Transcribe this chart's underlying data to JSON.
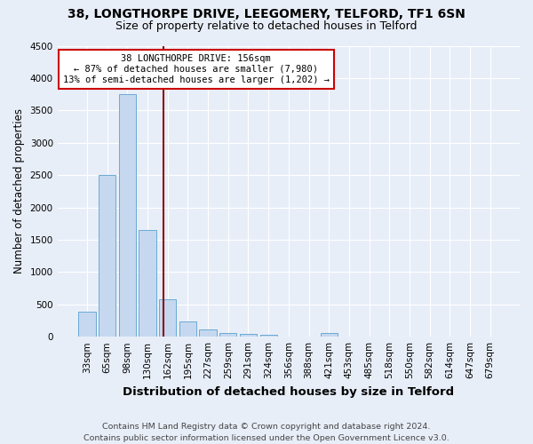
{
  "title1": "38, LONGTHORPE DRIVE, LEEGOMERY, TELFORD, TF1 6SN",
  "title2": "Size of property relative to detached houses in Telford",
  "xlabel": "Distribution of detached houses by size in Telford",
  "ylabel": "Number of detached properties",
  "footer": "Contains HM Land Registry data © Crown copyright and database right 2024.\nContains public sector information licensed under the Open Government Licence v3.0.",
  "annotation_title": "38 LONGTHORPE DRIVE: 156sqm",
  "annotation_line1": "← 87% of detached houses are smaller (7,980)",
  "annotation_line2": "13% of semi-detached houses are larger (1,202) →",
  "bar_labels": [
    "33sqm",
    "65sqm",
    "98sqm",
    "130sqm",
    "162sqm",
    "195sqm",
    "227sqm",
    "259sqm",
    "291sqm",
    "324sqm",
    "356sqm",
    "388sqm",
    "421sqm",
    "453sqm",
    "485sqm",
    "518sqm",
    "550sqm",
    "582sqm",
    "614sqm",
    "647sqm",
    "679sqm"
  ],
  "bar_values": [
    390,
    2500,
    3750,
    1650,
    580,
    240,
    110,
    60,
    40,
    35,
    0,
    0,
    55,
    0,
    0,
    0,
    0,
    0,
    0,
    0,
    0
  ],
  "bar_color": "#c5d8f0",
  "bar_edge_color": "#6aaad4",
  "vline_color": "#8b1010",
  "ylim": [
    0,
    4500
  ],
  "yticks": [
    0,
    500,
    1000,
    1500,
    2000,
    2500,
    3000,
    3500,
    4000,
    4500
  ],
  "background_color": "#e8eef8",
  "grid_color": "#ffffff",
  "annotation_box_color": "#ffffff",
  "annotation_box_edge": "#cc0000",
  "title1_fontsize": 10,
  "title2_fontsize": 9,
  "xlabel_fontsize": 9.5,
  "ylabel_fontsize": 8.5,
  "tick_fontsize": 7.5,
  "footer_fontsize": 6.8,
  "annot_fontsize": 7.5
}
